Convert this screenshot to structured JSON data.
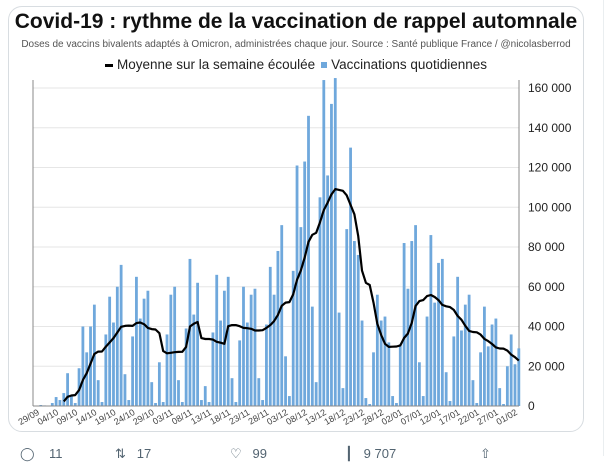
{
  "tweet": {
    "actions": [
      {
        "icon": "reply-icon",
        "count": "11"
      },
      {
        "icon": "retweet-icon",
        "count": "17"
      },
      {
        "icon": "like-icon",
        "count": "99"
      },
      {
        "icon": "views-icon",
        "count": "9 707"
      },
      {
        "icon": "share-icon",
        "count": ""
      }
    ]
  },
  "chart_data": {
    "type": "bar",
    "title": "Covid-19 : rythme de la vaccination de rappel automnale",
    "subtitle": "Doses de vaccins bivalents adaptés à Omicron, administrées chaque jour. Source : Santé publique France / @nicolasberrod",
    "legend": {
      "position": "top",
      "line_label": "Moyenne sur la semaine écoulée",
      "bar_label": "Vaccinations quotidiennes"
    },
    "y_axis": {
      "side": "right",
      "ylim": [
        0,
        165000
      ],
      "ticks": [
        0,
        20000,
        40000,
        60000,
        80000,
        100000,
        120000,
        140000,
        160000
      ],
      "tick_labels": [
        "0",
        "20 000",
        "40 000",
        "60 000",
        "80 000",
        "100 000",
        "120 000",
        "140 000",
        "160 000"
      ],
      "grid": true
    },
    "x_axis": {
      "tick_labels": [
        "29/09",
        "04/10",
        "09/10",
        "14/10",
        "19/10",
        "24/10",
        "29/10",
        "03/11",
        "08/11",
        "13/11",
        "18/11",
        "23/11",
        "28/11",
        "03/12",
        "08/12",
        "13/12",
        "18/12",
        "23/12",
        "28/12",
        "02/01",
        "07/01",
        "12/01",
        "17/01",
        "22/01",
        "27/01",
        "01/02"
      ]
    },
    "colors": {
      "bars": "#6fa8dc",
      "line": "#000000",
      "grid": "#e6e6e6"
    },
    "dates": [
      "30/09",
      "01/10",
      "02/10",
      "03/10",
      "04/10",
      "05/10",
      "06/10",
      "07/10",
      "08/10",
      "09/10",
      "10/10",
      "11/10",
      "12/10",
      "13/10",
      "14/10",
      "15/10",
      "16/10",
      "17/10",
      "18/10",
      "19/10",
      "20/10",
      "21/10",
      "22/10",
      "23/10",
      "24/10",
      "25/10",
      "26/10",
      "27/10",
      "28/10",
      "29/10",
      "30/10",
      "31/10",
      "01/11",
      "02/11",
      "03/11",
      "04/11",
      "05/11",
      "06/11",
      "07/11",
      "08/11",
      "09/11",
      "10/11",
      "11/11",
      "12/11",
      "13/11",
      "14/11",
      "15/11",
      "16/11",
      "17/11",
      "18/11",
      "19/11",
      "20/11",
      "21/11",
      "22/11",
      "23/11",
      "24/11",
      "25/11",
      "26/11",
      "27/11",
      "28/11",
      "29/11",
      "30/11",
      "01/12",
      "02/12",
      "03/12",
      "04/12",
      "05/12",
      "06/12",
      "07/12",
      "08/12",
      "09/12",
      "10/12",
      "11/12",
      "12/12",
      "13/12",
      "14/12",
      "15/12",
      "16/12",
      "17/12",
      "18/12",
      "19/12",
      "20/12",
      "21/12",
      "22/12",
      "23/12",
      "24/12",
      "25/12",
      "26/12",
      "27/12",
      "28/12",
      "29/12",
      "30/12",
      "31/12",
      "01/01",
      "02/01",
      "03/01",
      "04/01",
      "05/01",
      "06/01",
      "07/01",
      "08/01",
      "09/01",
      "10/01",
      "11/01",
      "12/01",
      "13/01",
      "14/01",
      "15/01",
      "16/01",
      "17/01",
      "18/01",
      "19/01",
      "20/01",
      "21/01",
      "22/01",
      "23/01",
      "24/01",
      "25/01",
      "26/01",
      "27/01",
      "28/01",
      "29/01",
      "30/01",
      "31/01",
      "01/02",
      "02/02"
    ],
    "series": [
      {
        "name": "Vaccinations quotidiennes",
        "type": "bar",
        "values": [
          500,
          300,
          0,
          1500,
          4500,
          3000,
          6500,
          16500,
          5000,
          1500,
          19000,
          40000,
          27000,
          40000,
          51000,
          13000,
          2000,
          36000,
          55000,
          42000,
          60000,
          71000,
          16000,
          3000,
          35000,
          65000,
          44000,
          54000,
          58000,
          12000,
          1500,
          22000,
          2000,
          36000,
          56000,
          60000,
          13000,
          2000,
          39000,
          74000,
          46000,
          62000,
          3000,
          10000,
          2000,
          37000,
          66000,
          43000,
          58000,
          65000,
          14000,
          2000,
          33000,
          60000,
          42000,
          56000,
          59000,
          14000,
          3000,
          41000,
          70000,
          56000,
          78000,
          91000,
          25000,
          5000,
          68000,
          121000,
          90000,
          123000,
          146000,
          50000,
          12000,
          105000,
          164000,
          116000,
          152000,
          165000,
          47000,
          9000,
          89000,
          130000,
          83000,
          76000,
          43000,
          4000,
          1000,
          27000,
          56000,
          43000,
          45000,
          32000,
          5000,
          1500,
          31000,
          82000,
          59000,
          83000,
          91000,
          22000,
          5000,
          45000,
          86000,
          52000,
          72000,
          74000,
          17000,
          2500,
          35000,
          65000,
          38000,
          51000,
          56000,
          13000,
          1500,
          27000,
          50000,
          30000,
          41000,
          44000,
          9000,
          1000,
          20000,
          36000,
          21000,
          29000
        ]
      },
      {
        "name": "Moyenne sur la semaine écoulée",
        "type": "line",
        "window_days": 7
      }
    ]
  }
}
